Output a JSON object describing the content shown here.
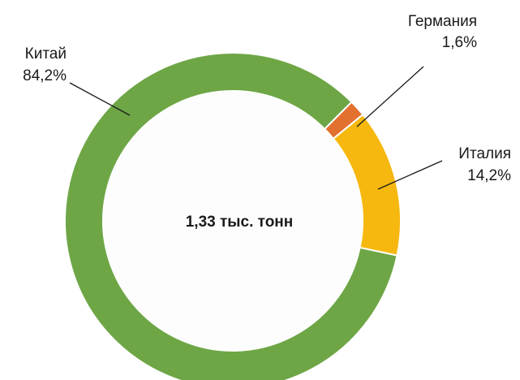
{
  "chart_data": {
    "type": "pie",
    "center_label": "1,33 тыс. тонн",
    "categories": [
      "Германия",
      "Италия",
      "Китай"
    ],
    "values": [
      1.6,
      14.2,
      84.2
    ],
    "value_labels": [
      "1,6%",
      "14,2%",
      "84,2%"
    ],
    "colors": [
      "#e2702f",
      "#f6b80f",
      "#6ea646"
    ]
  }
}
